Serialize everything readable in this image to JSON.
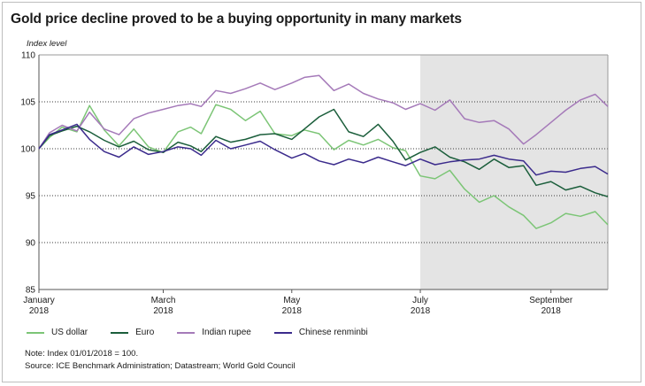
{
  "header": {
    "title": "Gold price decline proved to be a buying opportunity in many markets",
    "units": "Index level"
  },
  "footer": {
    "note": "Note: Index 01/01/2018 = 100.",
    "source": "Source: ICE Benchmark Administration; Datastream; World Gold Council"
  },
  "chart_data": {
    "type": "line",
    "title": "Gold price decline proved to be a buying opportunity in many markets",
    "ylabel": "Index level",
    "xlabel": "",
    "ylim": [
      85,
      110
    ],
    "yticks": [
      85,
      90,
      95,
      100,
      105,
      110
    ],
    "xlim": [
      "2018-01-01",
      "2018-09-28"
    ],
    "xticks": [
      {
        "date": "2018-01-01",
        "label": "January",
        "year": "2018"
      },
      {
        "date": "2018-03-01",
        "label": "March",
        "year": "2018"
      },
      {
        "date": "2018-05-01",
        "label": "May",
        "year": "2018"
      },
      {
        "date": "2018-07-01",
        "label": "July",
        "year": "2018"
      },
      {
        "date": "2018-09-01",
        "label": "September",
        "year": "2018"
      }
    ],
    "grid": true,
    "shaded_region": {
      "from": "2018-07-01",
      "to": "2018-09-28",
      "color": "#e4e4e4"
    },
    "legend_position": "bottom-left",
    "series": [
      {
        "name": "US dollar",
        "color": "#7cc576",
        "points": [
          [
            "2018-01-01",
            100.0
          ],
          [
            "2018-01-06",
            101.2
          ],
          [
            "2018-01-12",
            102.3
          ],
          [
            "2018-01-19",
            101.8
          ],
          [
            "2018-01-25",
            104.6
          ],
          [
            "2018-02-01",
            102.0
          ],
          [
            "2018-02-08",
            100.3
          ],
          [
            "2018-02-15",
            102.1
          ],
          [
            "2018-02-22",
            100.2
          ],
          [
            "2018-03-01",
            99.6
          ],
          [
            "2018-03-08",
            101.8
          ],
          [
            "2018-03-14",
            102.3
          ],
          [
            "2018-03-19",
            101.6
          ],
          [
            "2018-03-26",
            104.7
          ],
          [
            "2018-04-02",
            104.2
          ],
          [
            "2018-04-09",
            103.0
          ],
          [
            "2018-04-16",
            104.0
          ],
          [
            "2018-04-23",
            101.6
          ],
          [
            "2018-05-01",
            101.4
          ],
          [
            "2018-05-07",
            102.0
          ],
          [
            "2018-05-14",
            101.6
          ],
          [
            "2018-05-21",
            99.9
          ],
          [
            "2018-05-28",
            100.9
          ],
          [
            "2018-06-04",
            100.4
          ],
          [
            "2018-06-11",
            101.0
          ],
          [
            "2018-06-18",
            100.1
          ],
          [
            "2018-06-24",
            99.8
          ],
          [
            "2018-07-01",
            97.1
          ],
          [
            "2018-07-08",
            96.8
          ],
          [
            "2018-07-15",
            97.7
          ],
          [
            "2018-07-22",
            95.7
          ],
          [
            "2018-07-29",
            94.3
          ],
          [
            "2018-08-05",
            95.0
          ],
          [
            "2018-08-12",
            93.8
          ],
          [
            "2018-08-19",
            92.9
          ],
          [
            "2018-08-25",
            91.5
          ],
          [
            "2018-09-01",
            92.1
          ],
          [
            "2018-09-08",
            93.1
          ],
          [
            "2018-09-15",
            92.8
          ],
          [
            "2018-09-22",
            93.3
          ],
          [
            "2018-09-28",
            91.9
          ]
        ]
      },
      {
        "name": "Euro",
        "color": "#1b5e3b",
        "points": [
          [
            "2018-01-01",
            100.0
          ],
          [
            "2018-01-06",
            101.4
          ],
          [
            "2018-01-12",
            101.9
          ],
          [
            "2018-01-19",
            102.4
          ],
          [
            "2018-01-25",
            101.8
          ],
          [
            "2018-02-01",
            100.9
          ],
          [
            "2018-02-08",
            100.2
          ],
          [
            "2018-02-15",
            100.8
          ],
          [
            "2018-02-22",
            99.9
          ],
          [
            "2018-03-01",
            99.6
          ],
          [
            "2018-03-08",
            100.7
          ],
          [
            "2018-03-14",
            100.3
          ],
          [
            "2018-03-19",
            99.7
          ],
          [
            "2018-03-26",
            101.3
          ],
          [
            "2018-04-02",
            100.7
          ],
          [
            "2018-04-09",
            101.0
          ],
          [
            "2018-04-16",
            101.5
          ],
          [
            "2018-04-23",
            101.6
          ],
          [
            "2018-05-01",
            101.0
          ],
          [
            "2018-05-07",
            102.1
          ],
          [
            "2018-05-14",
            103.4
          ],
          [
            "2018-05-21",
            104.2
          ],
          [
            "2018-05-28",
            101.8
          ],
          [
            "2018-06-04",
            101.3
          ],
          [
            "2018-06-11",
            102.6
          ],
          [
            "2018-06-18",
            100.8
          ],
          [
            "2018-06-24",
            98.8
          ],
          [
            "2018-07-01",
            99.6
          ],
          [
            "2018-07-08",
            100.2
          ],
          [
            "2018-07-15",
            99.1
          ],
          [
            "2018-07-22",
            98.6
          ],
          [
            "2018-07-29",
            97.8
          ],
          [
            "2018-08-05",
            98.9
          ],
          [
            "2018-08-12",
            98.0
          ],
          [
            "2018-08-19",
            98.2
          ],
          [
            "2018-08-25",
            96.1
          ],
          [
            "2018-09-01",
            96.5
          ],
          [
            "2018-09-08",
            95.6
          ],
          [
            "2018-09-15",
            96.0
          ],
          [
            "2018-09-22",
            95.3
          ],
          [
            "2018-09-28",
            94.9
          ]
        ]
      },
      {
        "name": "Indian rupee",
        "color": "#a57ab9",
        "points": [
          [
            "2018-01-01",
            100.0
          ],
          [
            "2018-01-06",
            101.7
          ],
          [
            "2018-01-12",
            102.5
          ],
          [
            "2018-01-19",
            101.9
          ],
          [
            "2018-01-25",
            103.9
          ],
          [
            "2018-02-01",
            102.1
          ],
          [
            "2018-02-08",
            101.5
          ],
          [
            "2018-02-15",
            103.2
          ],
          [
            "2018-02-22",
            103.8
          ],
          [
            "2018-03-01",
            104.2
          ],
          [
            "2018-03-08",
            104.6
          ],
          [
            "2018-03-14",
            104.8
          ],
          [
            "2018-03-19",
            104.5
          ],
          [
            "2018-03-26",
            106.2
          ],
          [
            "2018-04-02",
            105.9
          ],
          [
            "2018-04-09",
            106.4
          ],
          [
            "2018-04-16",
            107.0
          ],
          [
            "2018-04-23",
            106.3
          ],
          [
            "2018-05-01",
            107.0
          ],
          [
            "2018-05-07",
            107.6
          ],
          [
            "2018-05-14",
            107.8
          ],
          [
            "2018-05-21",
            106.2
          ],
          [
            "2018-05-28",
            106.9
          ],
          [
            "2018-06-04",
            105.9
          ],
          [
            "2018-06-11",
            105.3
          ],
          [
            "2018-06-18",
            104.9
          ],
          [
            "2018-06-24",
            104.2
          ],
          [
            "2018-07-01",
            104.8
          ],
          [
            "2018-07-08",
            104.1
          ],
          [
            "2018-07-15",
            105.2
          ],
          [
            "2018-07-22",
            103.2
          ],
          [
            "2018-07-29",
            102.8
          ],
          [
            "2018-08-05",
            103.0
          ],
          [
            "2018-08-12",
            102.1
          ],
          [
            "2018-08-19",
            100.5
          ],
          [
            "2018-08-25",
            101.5
          ],
          [
            "2018-09-01",
            102.8
          ],
          [
            "2018-09-08",
            104.1
          ],
          [
            "2018-09-15",
            105.2
          ],
          [
            "2018-09-22",
            105.8
          ],
          [
            "2018-09-28",
            104.5
          ]
        ]
      },
      {
        "name": "Chinese renminbi",
        "color": "#3b2b8c",
        "points": [
          [
            "2018-01-01",
            100.0
          ],
          [
            "2018-01-06",
            101.5
          ],
          [
            "2018-01-12",
            102.0
          ],
          [
            "2018-01-19",
            102.6
          ],
          [
            "2018-01-25",
            101.0
          ],
          [
            "2018-02-01",
            99.7
          ],
          [
            "2018-02-08",
            99.1
          ],
          [
            "2018-02-15",
            100.2
          ],
          [
            "2018-02-22",
            99.4
          ],
          [
            "2018-03-01",
            99.7
          ],
          [
            "2018-03-08",
            100.2
          ],
          [
            "2018-03-14",
            100.0
          ],
          [
            "2018-03-19",
            99.3
          ],
          [
            "2018-03-26",
            100.9
          ],
          [
            "2018-04-02",
            100.0
          ],
          [
            "2018-04-09",
            100.4
          ],
          [
            "2018-04-16",
            100.8
          ],
          [
            "2018-04-23",
            99.9
          ],
          [
            "2018-05-01",
            99.0
          ],
          [
            "2018-05-07",
            99.5
          ],
          [
            "2018-05-14",
            98.7
          ],
          [
            "2018-05-21",
            98.3
          ],
          [
            "2018-05-28",
            98.9
          ],
          [
            "2018-06-04",
            98.5
          ],
          [
            "2018-06-11",
            99.1
          ],
          [
            "2018-06-18",
            98.6
          ],
          [
            "2018-06-24",
            98.2
          ],
          [
            "2018-07-01",
            98.9
          ],
          [
            "2018-07-08",
            98.3
          ],
          [
            "2018-07-15",
            98.6
          ],
          [
            "2018-07-22",
            98.8
          ],
          [
            "2018-07-29",
            98.9
          ],
          [
            "2018-08-05",
            99.3
          ],
          [
            "2018-08-12",
            98.9
          ],
          [
            "2018-08-19",
            98.7
          ],
          [
            "2018-08-25",
            97.2
          ],
          [
            "2018-09-01",
            97.6
          ],
          [
            "2018-09-08",
            97.5
          ],
          [
            "2018-09-15",
            97.9
          ],
          [
            "2018-09-22",
            98.1
          ],
          [
            "2018-09-28",
            97.3
          ]
        ]
      }
    ]
  }
}
